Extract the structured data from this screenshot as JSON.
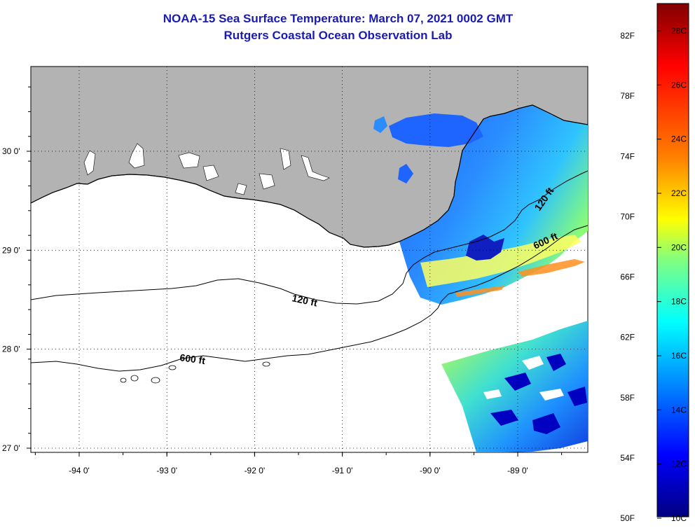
{
  "title": {
    "line1": "NOAA-15 Sea Surface Temperature:  March 07, 2021 0002 GMT",
    "line2": "Rutgers Coastal Ocean Observation Lab"
  },
  "map": {
    "lon_ticks": [
      {
        "value": -94,
        "label": "-94 0'"
      },
      {
        "value": -93,
        "label": "-93 0'"
      },
      {
        "value": -92,
        "label": "-92 0'"
      },
      {
        "value": -91,
        "label": "-91 0'"
      },
      {
        "value": -90,
        "label": "-90 0'"
      },
      {
        "value": -89,
        "label": "-89 0'"
      }
    ],
    "lat_ticks": [
      {
        "value": 30,
        "label": "30 0'"
      },
      {
        "value": 29,
        "label": "29 0'"
      },
      {
        "value": 28,
        "label": "28 0'"
      },
      {
        "value": 27,
        "label": "27 0'"
      }
    ],
    "contours": [
      {
        "label": "120 ft"
      },
      {
        "label": "600 ft"
      },
      {
        "label": "120 ft"
      },
      {
        "label": "600 ft"
      }
    ],
    "colors": {
      "land": "#b3b3b3",
      "ocean": "#ffffff",
      "line": "#000000"
    }
  },
  "colorbar": {
    "fahrenheit": [
      "82F",
      "78F",
      "74F",
      "70F",
      "66F",
      "62F",
      "58F",
      "54F",
      "50F"
    ],
    "celsius": [
      "28C",
      "26C",
      "24C",
      "22C",
      "20C",
      "18C",
      "16C",
      "14C",
      "12C",
      "10C"
    ],
    "stops": [
      "#800000",
      "#ff0000",
      "#ff8000",
      "#ffff00",
      "#80ff80",
      "#00ffff",
      "#0080ff",
      "#0000ff",
      "#000080"
    ]
  }
}
